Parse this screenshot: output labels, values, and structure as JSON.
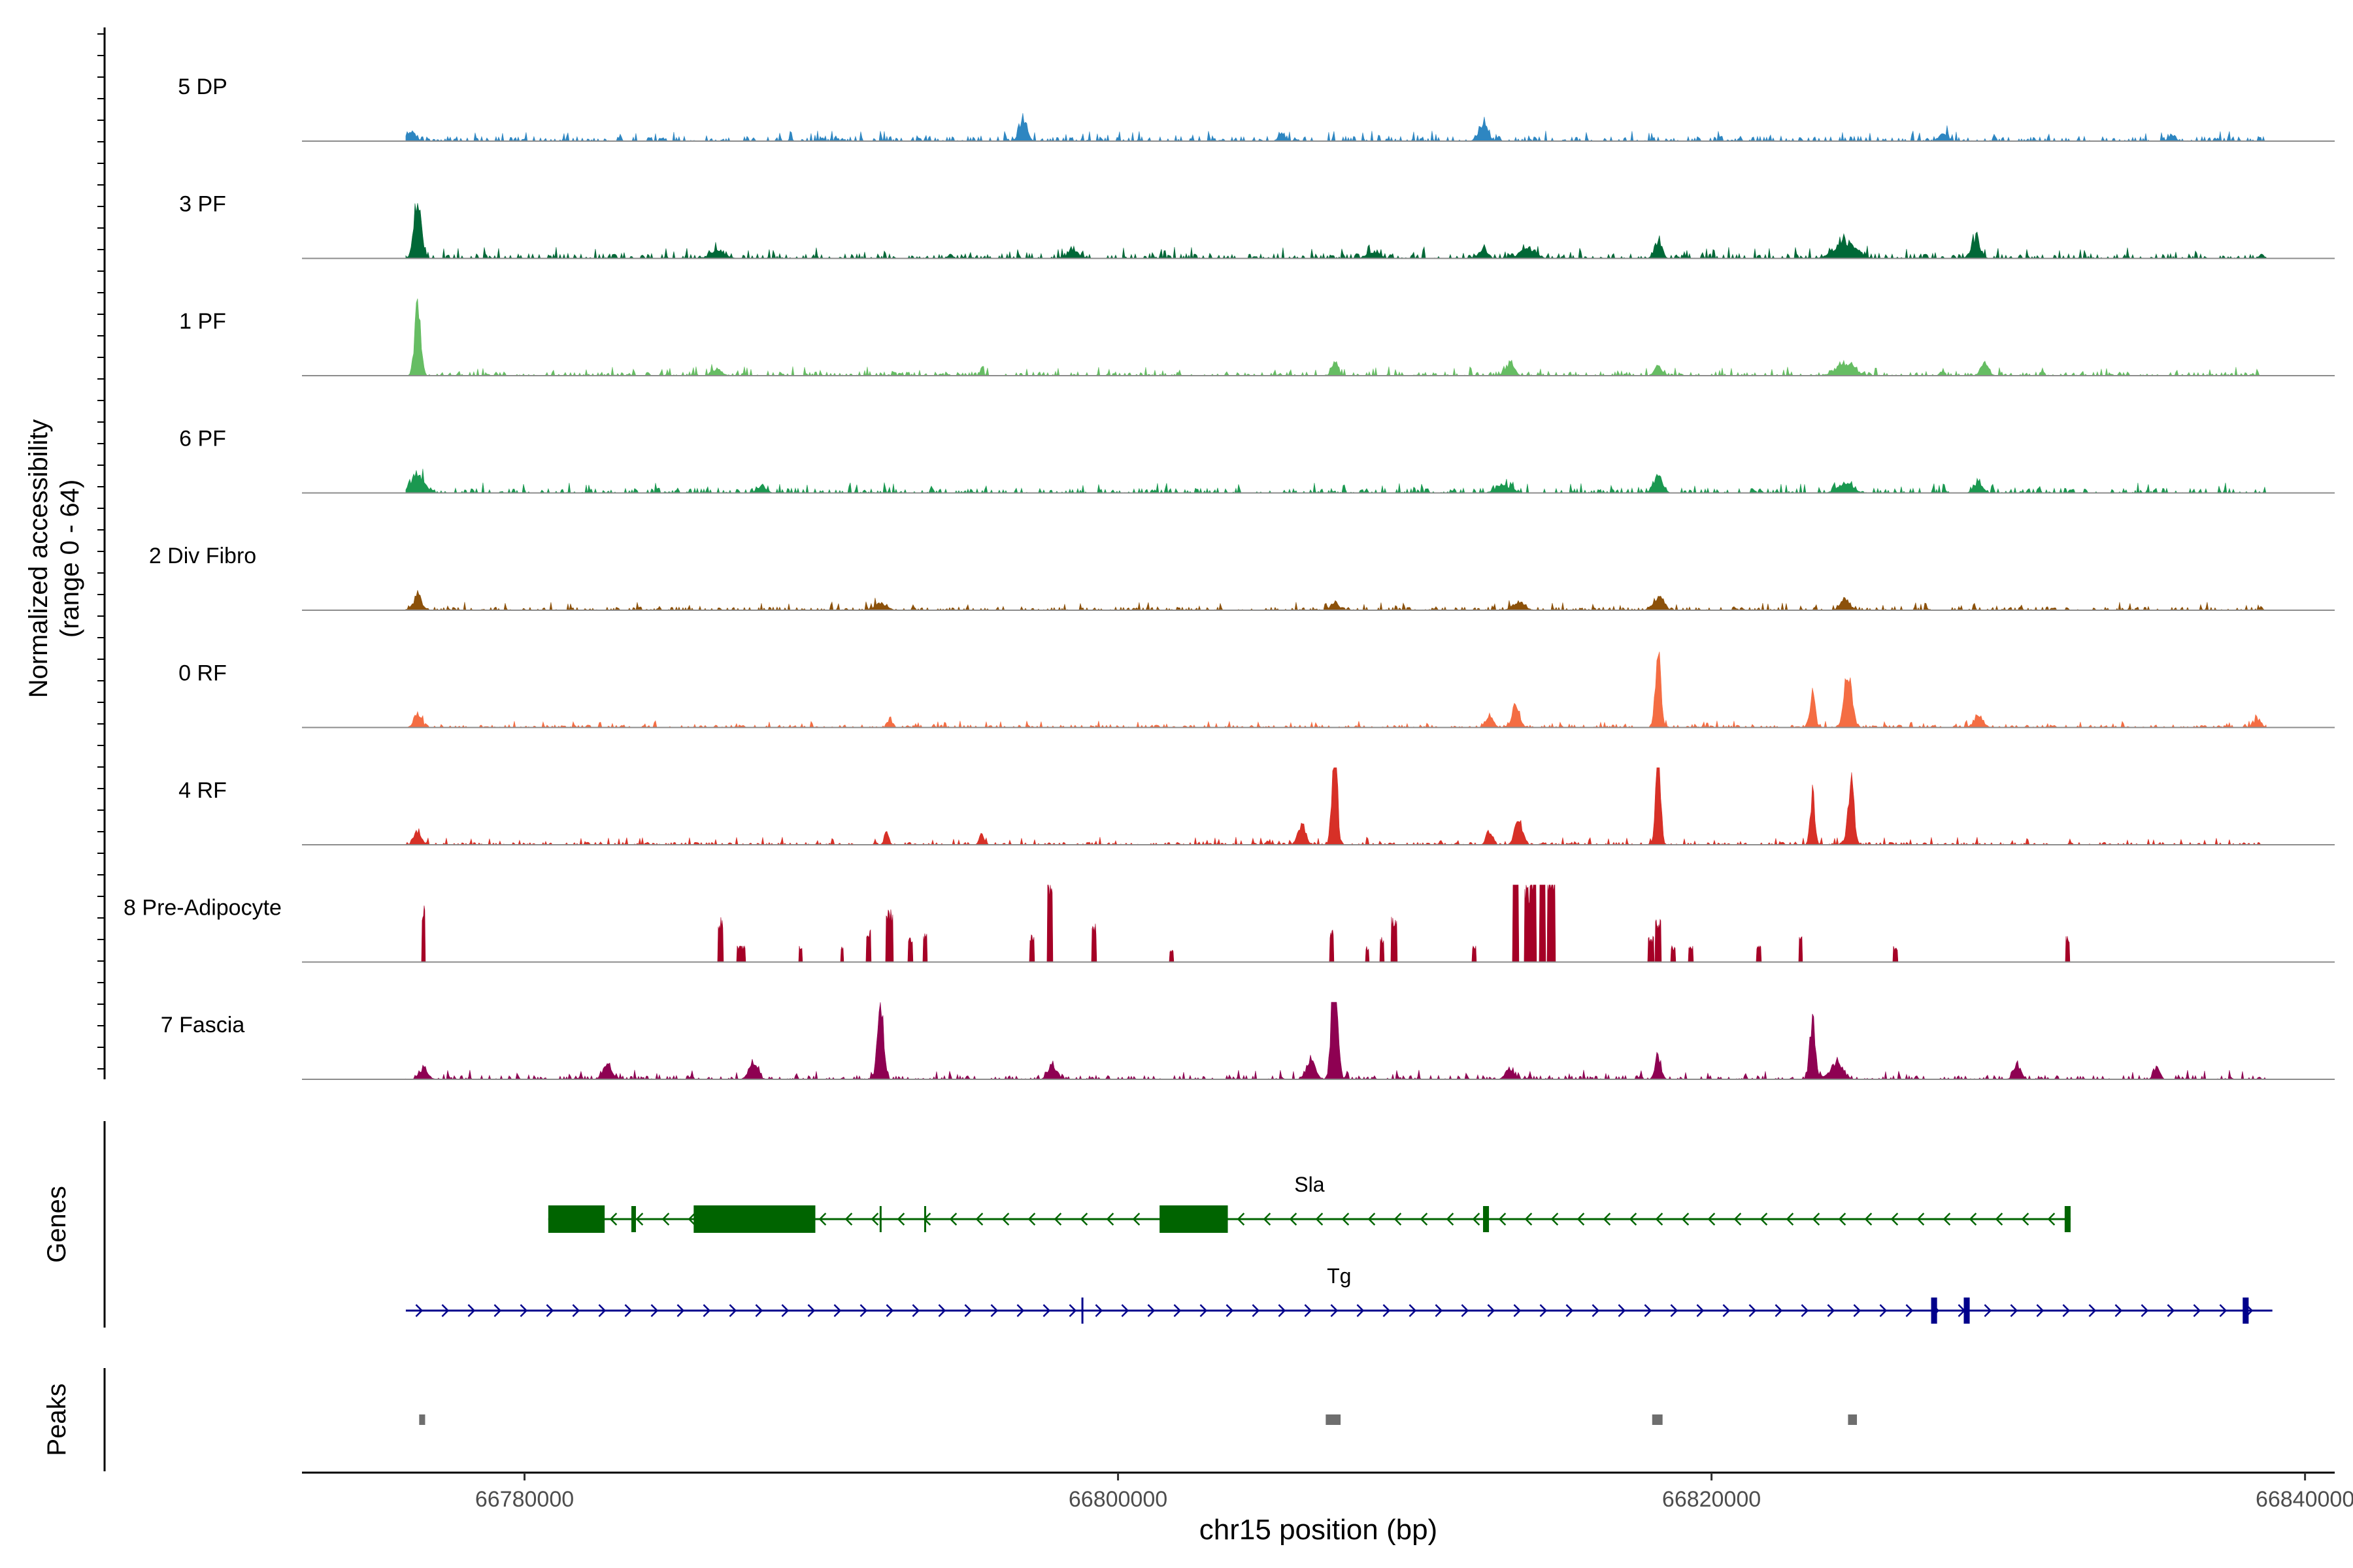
{
  "chart_data": {
    "type": "area",
    "title": "",
    "chromosome": "chr15",
    "xlabel": "chr15 position (bp)",
    "ylabel_line1": "Normalized accessibility",
    "ylabel_line2": "(range 0 - 64)",
    "xlim": [
      66772500,
      66841000
    ],
    "ylim": [
      0,
      64
    ],
    "data_start": 66776000,
    "data_end": 66838700,
    "xticks": [
      66780000,
      66800000,
      66820000,
      66840000
    ],
    "xtick_labels": [
      "66780000",
      "66800000",
      "66820000",
      "66840000"
    ],
    "panel_labels": {
      "genes": "Genes",
      "peaks": "Peaks"
    },
    "tracks": [
      {
        "name": "5 DP",
        "color": "#2E86C1",
        "base": 1.5,
        "noise": 2.0,
        "peaks": [
          [
            66796800,
            7,
            250
          ],
          [
            66812300,
            5,
            300
          ],
          [
            66776200,
            2.5,
            300
          ],
          [
            66805500,
            2.5,
            200
          ],
          [
            66827800,
            2,
            300
          ],
          [
            66835500,
            2,
            200
          ]
        ]
      },
      {
        "name": "3 PF",
        "color": "#006837",
        "base": 1.5,
        "noise": 2.2,
        "peaks": [
          [
            66776400,
            18,
            250
          ],
          [
            66818200,
            5,
            250
          ],
          [
            66824500,
            5,
            700
          ],
          [
            66828900,
            6,
            300
          ],
          [
            66813800,
            3,
            500
          ],
          [
            66812300,
            2.5,
            300
          ],
          [
            66808600,
            2,
            400
          ],
          [
            66798500,
            2,
            400
          ],
          [
            66786500,
            2,
            500
          ]
        ]
      },
      {
        "name": "1 PF",
        "color": "#66BD63",
        "base": 1.2,
        "noise": 1.8,
        "peaks": [
          [
            66776400,
            22,
            200
          ],
          [
            66807300,
            4,
            200
          ],
          [
            66813200,
            3.5,
            300
          ],
          [
            66818200,
            3,
            250
          ],
          [
            66824500,
            4,
            600
          ],
          [
            66829200,
            4,
            250
          ],
          [
            66786500,
            2,
            300
          ]
        ]
      },
      {
        "name": "6 PF",
        "color": "#1A9850",
        "base": 1.5,
        "noise": 2.0,
        "peaks": [
          [
            66776400,
            6,
            400
          ],
          [
            66818200,
            5,
            300
          ],
          [
            66824500,
            3,
            500
          ],
          [
            66829000,
            3,
            300
          ],
          [
            66813000,
            2.5,
            500
          ],
          [
            66788000,
            2,
            300
          ]
        ]
      },
      {
        "name": "2 Div Fibro",
        "color": "#8C510A",
        "base": 1.0,
        "noise": 1.6,
        "peaks": [
          [
            66776400,
            4,
            300
          ],
          [
            66818200,
            4,
            350
          ],
          [
            66824500,
            4,
            300
          ],
          [
            66807300,
            2.5,
            250
          ],
          [
            66813500,
            2.5,
            400
          ],
          [
            66792000,
            2,
            400
          ]
        ]
      },
      {
        "name": "0 RF",
        "color": "#F46D43",
        "base": 0.8,
        "noise": 1.3,
        "peaks": [
          [
            66818200,
            24,
            180
          ],
          [
            66824600,
            17,
            250
          ],
          [
            66823400,
            10,
            180
          ],
          [
            66813400,
            7,
            250
          ],
          [
            66812500,
            3.5,
            250
          ],
          [
            66829000,
            4,
            300
          ],
          [
            66776400,
            4,
            250
          ],
          [
            66792300,
            2.5,
            150
          ],
          [
            66838400,
            2.5,
            250
          ]
        ]
      },
      {
        "name": "4 RF",
        "color": "#D73027",
        "base": 0.8,
        "noise": 1.5,
        "peaks": [
          [
            66807300,
            38,
            160
          ],
          [
            66818200,
            34,
            160
          ],
          [
            66824700,
            19,
            200
          ],
          [
            66823400,
            15,
            150
          ],
          [
            66813500,
            8,
            250
          ],
          [
            66806200,
            6,
            250
          ],
          [
            66812500,
            4,
            200
          ],
          [
            66776400,
            4,
            250
          ],
          [
            66792200,
            4,
            150
          ],
          [
            66795400,
            4,
            150
          ]
        ]
      },
      {
        "name": "8 Pre-Adipocyte",
        "color": "#A50026",
        "base": 0,
        "noise": 0,
        "step": true,
        "peaks": [
          [
            66776600,
            18,
            120
          ],
          [
            66786600,
            14,
            180
          ],
          [
            66787300,
            5,
            300
          ],
          [
            66789300,
            5,
            100
          ],
          [
            66790700,
            5,
            100
          ],
          [
            66791600,
            10,
            150
          ],
          [
            66792300,
            17,
            250
          ],
          [
            66793000,
            8,
            150
          ],
          [
            66793500,
            9,
            150
          ],
          [
            66797700,
            28,
            180
          ],
          [
            66797100,
            9,
            150
          ],
          [
            66799200,
            12,
            150
          ],
          [
            66801800,
            4,
            120
          ],
          [
            66807200,
            10,
            150
          ],
          [
            66808400,
            5,
            100
          ],
          [
            66808900,
            8,
            120
          ],
          [
            66809300,
            14,
            200
          ],
          [
            66812000,
            5,
            120
          ],
          [
            66813400,
            35,
            200
          ],
          [
            66813800,
            24,
            200
          ],
          [
            66814000,
            30,
            200
          ],
          [
            66814300,
            38,
            200
          ],
          [
            66814600,
            30,
            250
          ],
          [
            66817950,
            8,
            200
          ],
          [
            66818200,
            14,
            200
          ],
          [
            66818700,
            5,
            150
          ],
          [
            66819300,
            5,
            150
          ],
          [
            66821600,
            5,
            150
          ],
          [
            66823000,
            9,
            120
          ],
          [
            66826200,
            5,
            150
          ],
          [
            66832000,
            8,
            120
          ]
        ]
      },
      {
        "name": "7 Fascia",
        "color": "#8E0152",
        "base": 1.2,
        "noise": 1.8,
        "peaks": [
          [
            66807300,
            40,
            200
          ],
          [
            66792000,
            24,
            200
          ],
          [
            66823400,
            18,
            180
          ],
          [
            66806500,
            6,
            300
          ],
          [
            66824200,
            5,
            400
          ],
          [
            66818200,
            7,
            200
          ],
          [
            66787700,
            5,
            300
          ],
          [
            66782800,
            4,
            300
          ],
          [
            66797800,
            4,
            300
          ],
          [
            66813200,
            3,
            300
          ],
          [
            66830300,
            4,
            250
          ],
          [
            66835000,
            4,
            200
          ],
          [
            66776600,
            3,
            300
          ]
        ]
      }
    ],
    "genes": [
      {
        "name": "Sla",
        "color": "#006400",
        "strand": "-",
        "start": 66780800,
        "end": 66832100,
        "exons": [
          [
            66780800,
            66782700
          ],
          [
            66785700,
            66789800
          ],
          [
            66801400,
            66803700
          ],
          [
            66812300,
            66812500
          ],
          [
            66831900,
            66832100
          ],
          [
            66783600,
            66783700
          ]
        ],
        "introns_marks": [
          66792000,
          66793500
        ]
      },
      {
        "name": "Tg",
        "color": "#00008B",
        "strand": "+",
        "start": 66776000,
        "end": 66838900,
        "exons": [
          [
            66827400,
            66827600
          ],
          [
            66828500,
            66828700
          ],
          [
            66837900,
            66838100
          ]
        ],
        "introns_marks": [
          66798800
        ]
      }
    ],
    "peak_regions": [
      [
        66776450,
        66776650
      ],
      [
        66807000,
        66807500
      ],
      [
        66818000,
        66818350
      ],
      [
        66824600,
        66824900
      ]
    ],
    "peak_color": "#6e6e6e"
  }
}
